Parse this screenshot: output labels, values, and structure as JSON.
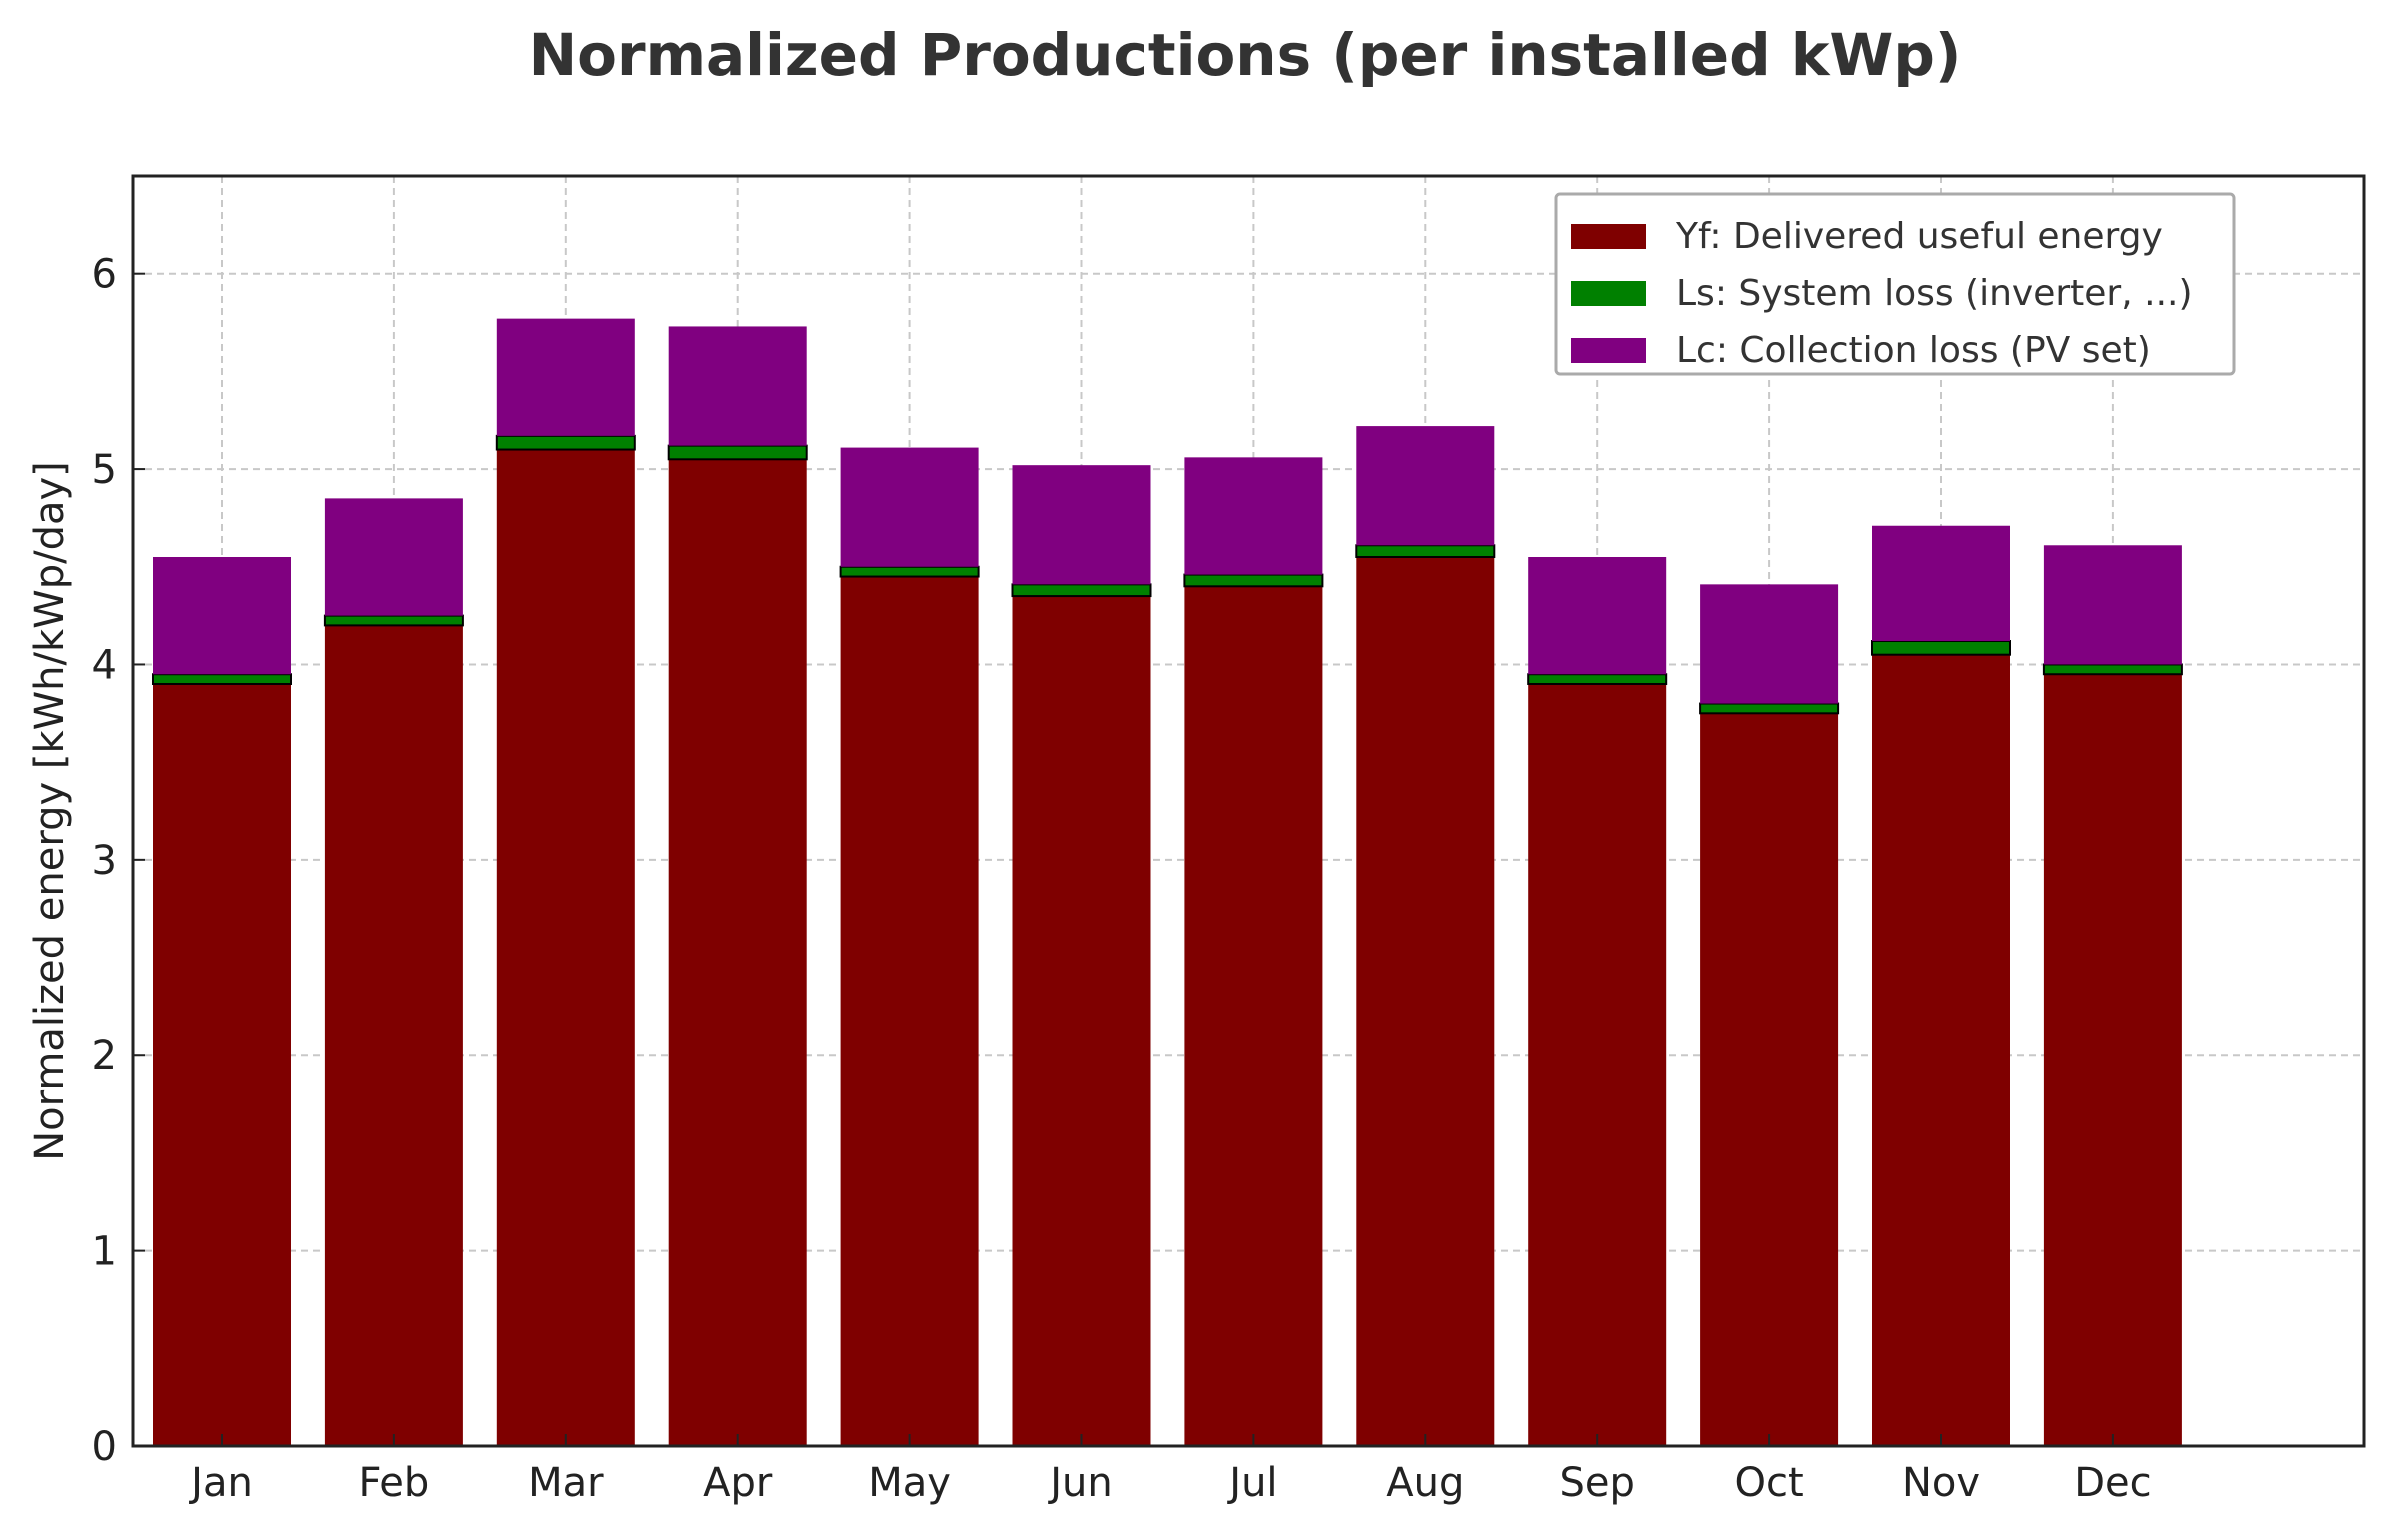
{
  "chart_data": {
    "type": "bar",
    "stacked": true,
    "title": "Normalized Productions (per installed kWp)",
    "xlabel": "",
    "ylabel": "Normalized energy [kWh/kWp/day]",
    "ylim": [
      0,
      6.5
    ],
    "yticks": [
      0,
      1,
      2,
      3,
      4,
      5,
      6
    ],
    "grid": true,
    "legend_position": "top-right",
    "categories": [
      "Jan",
      "Feb",
      "Mar",
      "Apr",
      "May",
      "Jun",
      "Jul",
      "Aug",
      "Sep",
      "Oct",
      "Nov",
      "Dec"
    ],
    "series": [
      {
        "name": "Yf: Delivered useful energy",
        "color": "#7f0000",
        "values": [
          3.9,
          4.2,
          5.1,
          5.05,
          4.45,
          4.35,
          4.4,
          4.55,
          3.9,
          3.75,
          4.05,
          3.95
        ]
      },
      {
        "name": "Ls: System loss (inverter, ...)",
        "color": "#008000",
        "values": [
          0.05,
          0.05,
          0.07,
          0.07,
          0.05,
          0.06,
          0.06,
          0.06,
          0.05,
          0.05,
          0.07,
          0.05
        ]
      },
      {
        "name": "Lc: Collection loss (PV set)",
        "color": "#800080",
        "values": [
          0.6,
          0.6,
          0.6,
          0.61,
          0.61,
          0.61,
          0.6,
          0.61,
          0.6,
          0.61,
          0.59,
          0.61
        ]
      }
    ]
  }
}
